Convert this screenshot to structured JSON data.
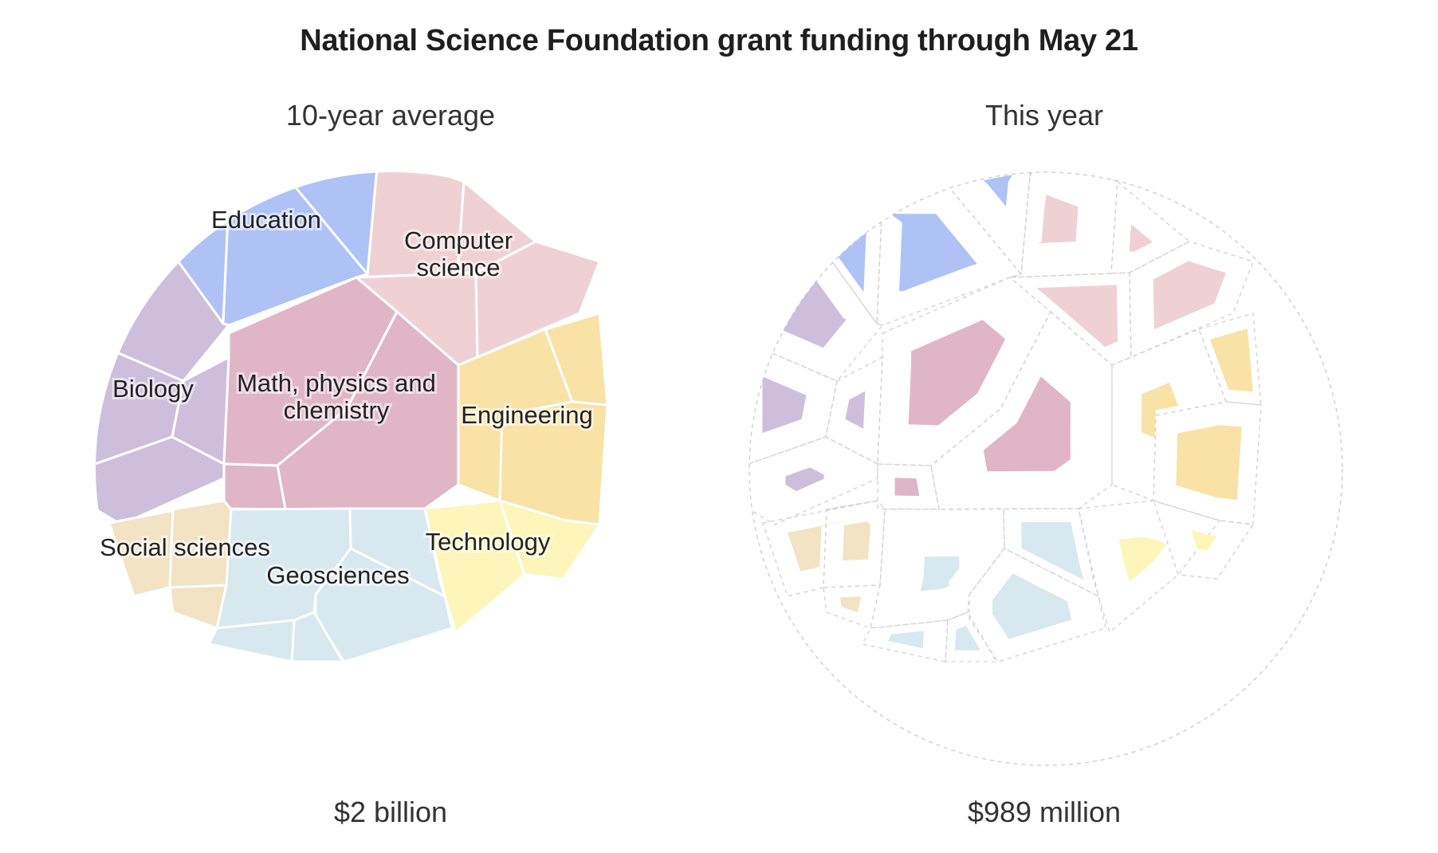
{
  "title": "National Science Foundation grant funding through May 21",
  "chart_data": {
    "type": "voronoi-treemap",
    "panels": [
      {
        "label": "10-year average",
        "total": "$2 billion",
        "total_value_usd": 2000000000
      },
      {
        "label": "This year",
        "total": "$989 million",
        "total_value_usd": 989000000
      }
    ],
    "categories": [
      {
        "name": "Education",
        "color": "#aec2f6"
      },
      {
        "name": "Computer science",
        "color": "#efd1d5"
      },
      {
        "name": "Biology",
        "color": "#cdbfdc"
      },
      {
        "name": "Math, physics and chemistry",
        "color": "#e0b6c6"
      },
      {
        "name": "Engineering",
        "color": "#f8e2a6"
      },
      {
        "name": "Social sciences",
        "color": "#f2e3c5"
      },
      {
        "name": "Geosciences",
        "color": "#d7e9ef"
      },
      {
        "name": "Technology",
        "color": "#fdf5b9"
      }
    ],
    "labels": [
      {
        "category": "Education",
        "lines": [
          "Education"
        ]
      },
      {
        "category": "Computer science",
        "lines": [
          "Computer",
          "science"
        ]
      },
      {
        "category": "Biology",
        "lines": [
          "Biology"
        ]
      },
      {
        "category": "Math, physics and chemistry",
        "lines": [
          "Math, physics and",
          "chemistry"
        ]
      },
      {
        "category": "Engineering",
        "lines": [
          "Engineering"
        ]
      },
      {
        "category": "Social sciences",
        "lines": [
          "Social sciences"
        ]
      },
      {
        "category": "Geosciences",
        "lines": [
          "Geosciences"
        ]
      },
      {
        "category": "Technology",
        "lines": [
          "Technology"
        ]
      }
    ],
    "legend": "none",
    "grid": false
  }
}
